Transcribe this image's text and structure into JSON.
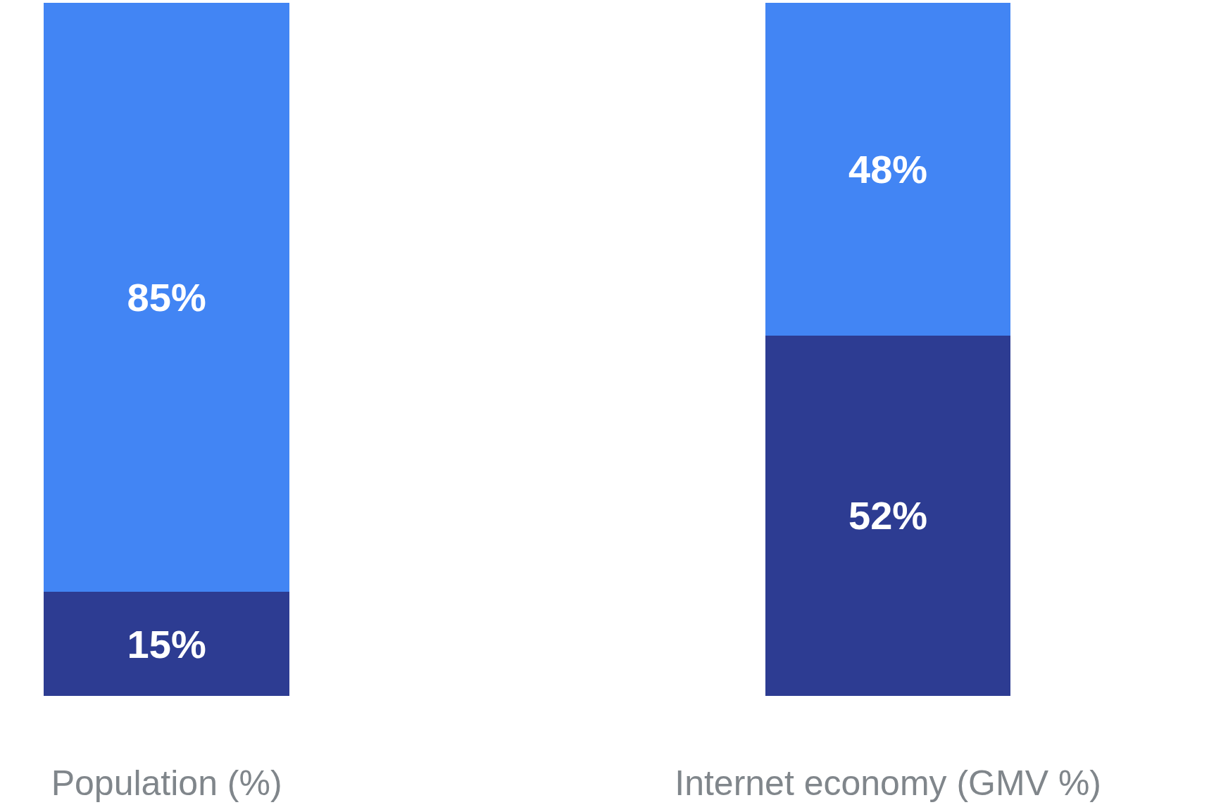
{
  "chart_data": {
    "type": "bar",
    "stacked": true,
    "categories": [
      "Population (%)",
      "Internet economy (GMV %)"
    ],
    "series": [
      {
        "color": "#2d3c92",
        "values": [
          15,
          52
        ],
        "value_labels": [
          "15%",
          "52%"
        ]
      },
      {
        "color": "#4285f4",
        "values": [
          85,
          48
        ],
        "value_labels": [
          "85%",
          "48%"
        ]
      }
    ]
  }
}
